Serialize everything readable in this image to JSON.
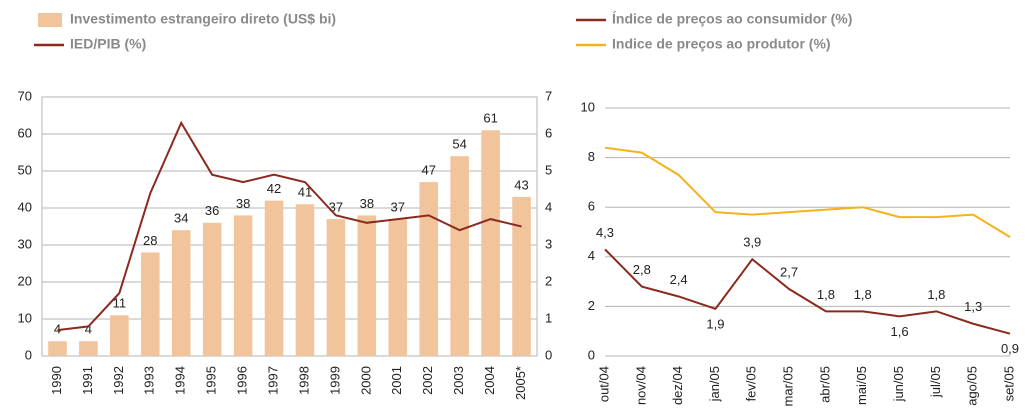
{
  "chart_data": [
    {
      "type": "bar",
      "categories": [
        "1990",
        "1991",
        "1992",
        "1993",
        "1994",
        "1995",
        "1996",
        "1997",
        "1998",
        "1999",
        "2000",
        "2001",
        "2002",
        "2003",
        "2004",
        "2005*"
      ],
      "series": [
        {
          "name": "Investimento estrangeiro direto (US$ bi)",
          "type": "bar",
          "color": "#f2c49b",
          "values": [
            4,
            4,
            11,
            28,
            34,
            36,
            38,
            42,
            41,
            37,
            38,
            37,
            47,
            54,
            61,
            43
          ]
        },
        {
          "name": "IED/PIB (%)",
          "type": "line",
          "axis": "y2",
          "color": "#8b2a1e",
          "values": [
            0.7,
            0.8,
            1.7,
            4.4,
            6.3,
            4.9,
            4.7,
            4.9,
            4.7,
            3.8,
            3.6,
            3.7,
            3.8,
            3.4,
            3.7,
            3.5
          ]
        }
      ],
      "ylim": [
        0,
        70
      ],
      "yticks": [
        0,
        10,
        20,
        30,
        40,
        50,
        60,
        70
      ],
      "y2lim": [
        0,
        7
      ],
      "y2ticks": [
        0,
        1,
        2,
        3,
        4,
        5,
        6,
        7
      ],
      "grid": true
    },
    {
      "type": "line",
      "categories": [
        "out/04",
        "nov/04",
        "dez/04",
        "jan/05",
        "fev/05",
        "mar/05",
        "abr/05",
        "mai/05",
        "jun/05",
        "jul/05",
        "ago/05",
        "set/05"
      ],
      "series": [
        {
          "name": "Índice de preços ao consumidor (%)",
          "color": "#8b2a1e",
          "values": [
            4.3,
            2.8,
            2.4,
            1.9,
            3.9,
            2.7,
            1.8,
            1.8,
            1.6,
            1.8,
            1.3,
            0.9
          ],
          "value_labels": [
            "4,3",
            "2,8",
            "2,4",
            "1,9",
            "3,9",
            "2,7",
            "1,8",
            "1,8",
            "1,6",
            "1,8",
            "1,3",
            "0,9"
          ]
        },
        {
          "name": "Indice de preços ao produtor (%)",
          "color": "#f5b21b",
          "values": [
            8.4,
            8.2,
            7.3,
            5.8,
            5.7,
            5.8,
            5.9,
            6.0,
            5.6,
            5.6,
            5.7,
            4.8
          ]
        }
      ],
      "ylim": [
        0,
        10
      ],
      "yticks": [
        0,
        2,
        4,
        6,
        8,
        10
      ],
      "grid": true
    }
  ]
}
